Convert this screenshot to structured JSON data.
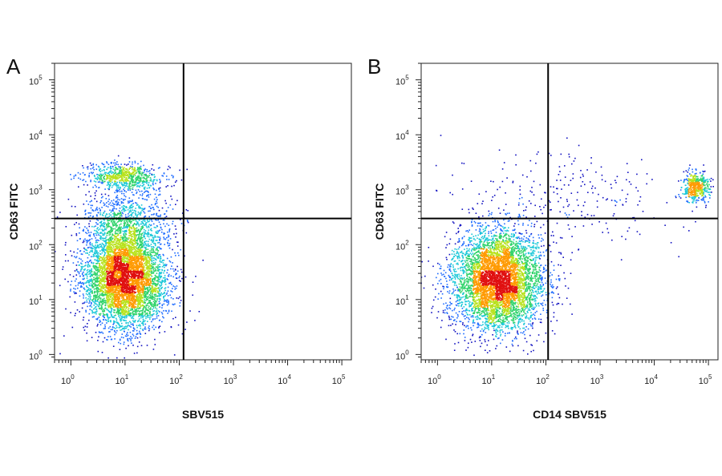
{
  "chart_data": [
    {
      "panel": "A",
      "type": "scatter",
      "subtype": "density-dot-plot",
      "xlabel": "SBV515",
      "ylabel": "CD63 FITC",
      "xscale": "log",
      "yscale": "log",
      "xlim": [
        0.5,
        150000
      ],
      "ylim": [
        0.8,
        200000
      ],
      "x_ticks": [
        {
          "base": "10",
          "exp": "0"
        },
        {
          "base": "10",
          "exp": "1"
        },
        {
          "base": "10",
          "exp": "2"
        },
        {
          "base": "10",
          "exp": "3"
        },
        {
          "base": "10",
          "exp": "4"
        },
        {
          "base": "10",
          "exp": "5"
        }
      ],
      "y_ticks": [
        {
          "base": "10",
          "exp": "0"
        },
        {
          "base": "10",
          "exp": "1"
        },
        {
          "base": "10",
          "exp": "2"
        },
        {
          "base": "10",
          "exp": "3"
        },
        {
          "base": "10",
          "exp": "4"
        },
        {
          "base": "10",
          "exp": "5"
        }
      ],
      "quadrant_gate": {
        "x": 120,
        "y": 300
      },
      "populations": [
        {
          "center": [
            10,
            25
          ],
          "spread": [
            0.38,
            0.45
          ],
          "count": 5200
        },
        {
          "center": [
            10,
            1700
          ],
          "spread": [
            0.35,
            0.12
          ],
          "count": 700
        },
        {
          "center": [
            10,
            250
          ],
          "spread": [
            0.4,
            0.35
          ],
          "count": 900
        }
      ],
      "colors": [
        "#1010c0",
        "#1e6cff",
        "#19c7d8",
        "#2fd36a",
        "#b8e21d",
        "#ff9a00",
        "#e01010"
      ]
    },
    {
      "panel": "B",
      "type": "scatter",
      "subtype": "density-dot-plot",
      "xlabel": "CD14 SBV515",
      "ylabel": "CD63 FITC",
      "xscale": "log",
      "yscale": "log",
      "xlim": [
        0.5,
        150000
      ],
      "ylim": [
        0.8,
        200000
      ],
      "x_ticks": [
        {
          "base": "10",
          "exp": "0"
        },
        {
          "base": "10",
          "exp": "1"
        },
        {
          "base": "10",
          "exp": "2"
        },
        {
          "base": "10",
          "exp": "3"
        },
        {
          "base": "10",
          "exp": "4"
        },
        {
          "base": "10",
          "exp": "5"
        }
      ],
      "y_ticks": [
        {
          "base": "10",
          "exp": "0"
        },
        {
          "base": "10",
          "exp": "1"
        },
        {
          "base": "10",
          "exp": "2"
        },
        {
          "base": "10",
          "exp": "3"
        },
        {
          "base": "10",
          "exp": "4"
        },
        {
          "base": "10",
          "exp": "5"
        }
      ],
      "quadrant_gate": {
        "x": 110,
        "y": 300
      },
      "populations": [
        {
          "center": [
            13,
            22
          ],
          "spread": [
            0.42,
            0.45
          ],
          "count": 5200
        },
        {
          "center": [
            60000,
            1100
          ],
          "spread": [
            0.12,
            0.14
          ],
          "count": 450
        },
        {
          "center": [
            300,
            600
          ],
          "spread": [
            1.0,
            0.5
          ],
          "count": 260
        }
      ],
      "colors": [
        "#1010c0",
        "#1e6cff",
        "#19c7d8",
        "#2fd36a",
        "#b8e21d",
        "#ff9a00",
        "#e01010"
      ]
    }
  ]
}
